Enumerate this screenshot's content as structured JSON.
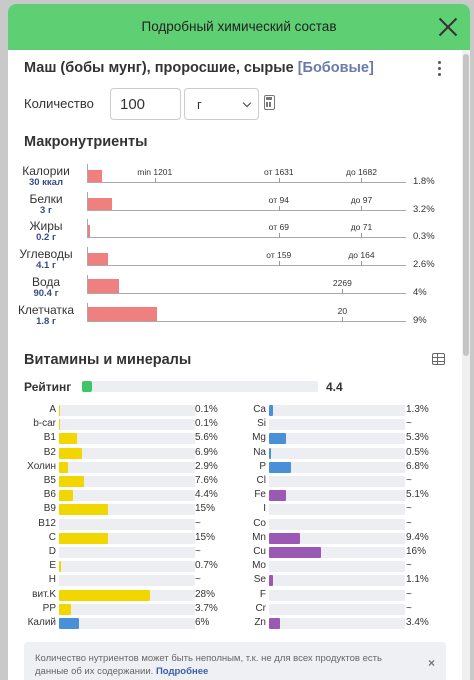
{
  "modal": {
    "title": "Подробный химический состав"
  },
  "product": {
    "name": "Маш (бобы мунг), проросшие, сырые",
    "category": "[Бобовые]"
  },
  "quantity": {
    "label": "Количество",
    "value": "100",
    "unit": "г"
  },
  "macros": {
    "title": "Макронутриенты",
    "rows": [
      {
        "name": "Калории",
        "value": "30 ккал",
        "percent": "1.8%",
        "fill_pct": 1.8,
        "markers": [
          {
            "label": "min 1201",
            "at": 0.21
          },
          {
            "label": "от 1631",
            "at": 0.6
          },
          {
            "label": "до 1682",
            "at": 0.86
          }
        ]
      },
      {
        "name": "Белки",
        "value": "3 г",
        "percent": "3.2%",
        "fill_pct": 3.2,
        "markers": [
          {
            "label": "от 94",
            "at": 0.6
          },
          {
            "label": "до 97",
            "at": 0.86
          }
        ]
      },
      {
        "name": "Жиры",
        "value": "0.2 г",
        "percent": "0.3%",
        "fill_pct": 0.3,
        "markers": [
          {
            "label": "от 69",
            "at": 0.6
          },
          {
            "label": "до 71",
            "at": 0.86
          }
        ]
      },
      {
        "name": "Углеводы",
        "value": "4.1 г",
        "percent": "2.6%",
        "fill_pct": 2.6,
        "markers": [
          {
            "label": "от 159",
            "at": 0.6
          },
          {
            "label": "до 164",
            "at": 0.86
          }
        ]
      },
      {
        "name": "Вода",
        "value": "90.4 г",
        "percent": "4%",
        "fill_pct": 4,
        "markers": [
          {
            "label": "2269",
            "at": 0.8
          }
        ]
      },
      {
        "name": "Клетчатка",
        "value": "1.8 г",
        "percent": "9%",
        "fill_pct": 9,
        "markers": [
          {
            "label": "20",
            "at": 0.8
          }
        ]
      }
    ]
  },
  "vitamins": {
    "title": "Витамины и минералы",
    "rating_label": "Рейтинг",
    "rating_value": "4.4",
    "rating_fill": 0.044,
    "left": [
      {
        "name": "A",
        "value": "0.1%",
        "fill": 0.1
      },
      {
        "name": "b-car",
        "value": "0.1%",
        "fill": 0.1
      },
      {
        "name": "B1",
        "value": "5.6%",
        "fill": 5.6
      },
      {
        "name": "B2",
        "value": "6.9%",
        "fill": 6.9
      },
      {
        "name": "Холин",
        "value": "2.9%",
        "fill": 2.9
      },
      {
        "name": "B5",
        "value": "7.6%",
        "fill": 7.6
      },
      {
        "name": "B6",
        "value": "4.4%",
        "fill": 4.4
      },
      {
        "name": "B9",
        "value": "15%",
        "fill": 15
      },
      {
        "name": "B12",
        "value": "~",
        "fill": 0
      },
      {
        "name": "C",
        "value": "15%",
        "fill": 15
      },
      {
        "name": "D",
        "value": "~",
        "fill": 0
      },
      {
        "name": "E",
        "value": "0.7%",
        "fill": 0.7
      },
      {
        "name": "H",
        "value": "~",
        "fill": 0
      },
      {
        "name": "вит.K",
        "value": "28%",
        "fill": 28
      },
      {
        "name": "PP",
        "value": "3.7%",
        "fill": 3.7
      },
      {
        "name": "Калий",
        "value": "6%",
        "fill": 6,
        "color": "#4a90d9"
      }
    ],
    "right": [
      {
        "name": "Ca",
        "value": "1.3%",
        "fill": 1.3,
        "color": "#4a90d9"
      },
      {
        "name": "Si",
        "value": "~",
        "fill": 0,
        "color": "#4a90d9"
      },
      {
        "name": "Mg",
        "value": "5.3%",
        "fill": 5.3,
        "color": "#4a90d9"
      },
      {
        "name": "Na",
        "value": "0.5%",
        "fill": 0.5,
        "color": "#4a90d9"
      },
      {
        "name": "P",
        "value": "6.8%",
        "fill": 6.8,
        "color": "#4a90d9"
      },
      {
        "name": "Cl",
        "value": "~",
        "fill": 0,
        "color": "#9b59b6"
      },
      {
        "name": "Fe",
        "value": "5.1%",
        "fill": 5.1,
        "color": "#9b59b6"
      },
      {
        "name": "I",
        "value": "~",
        "fill": 0,
        "color": "#9b59b6"
      },
      {
        "name": "Co",
        "value": "~",
        "fill": 0,
        "color": "#9b59b6"
      },
      {
        "name": "Mn",
        "value": "9.4%",
        "fill": 9.4,
        "color": "#9b59b6"
      },
      {
        "name": "Cu",
        "value": "16%",
        "fill": 16,
        "color": "#9b59b6"
      },
      {
        "name": "Mo",
        "value": "~",
        "fill": 0,
        "color": "#9b59b6"
      },
      {
        "name": "Se",
        "value": "1.1%",
        "fill": 1.1,
        "color": "#9b59b6"
      },
      {
        "name": "F",
        "value": "~",
        "fill": 0,
        "color": "#9b59b6"
      },
      {
        "name": "Cr",
        "value": "~",
        "fill": 0,
        "color": "#9b59b6"
      },
      {
        "name": "Zn",
        "value": "3.4%",
        "fill": 3.4,
        "color": "#9b59b6"
      }
    ]
  },
  "notice": {
    "text": "Количество нутриентов может быть неполным, т.к. не для всех продуктов есть данные об их содержании. ",
    "link": "Подробнее",
    "close": "×"
  },
  "colors": {
    "header": "#5fcf74",
    "macro_bar": "#f08080",
    "vitamin": "#f2d600",
    "mineral": "#4a90d9",
    "trace": "#9b59b6",
    "rating": "#3fc667"
  }
}
